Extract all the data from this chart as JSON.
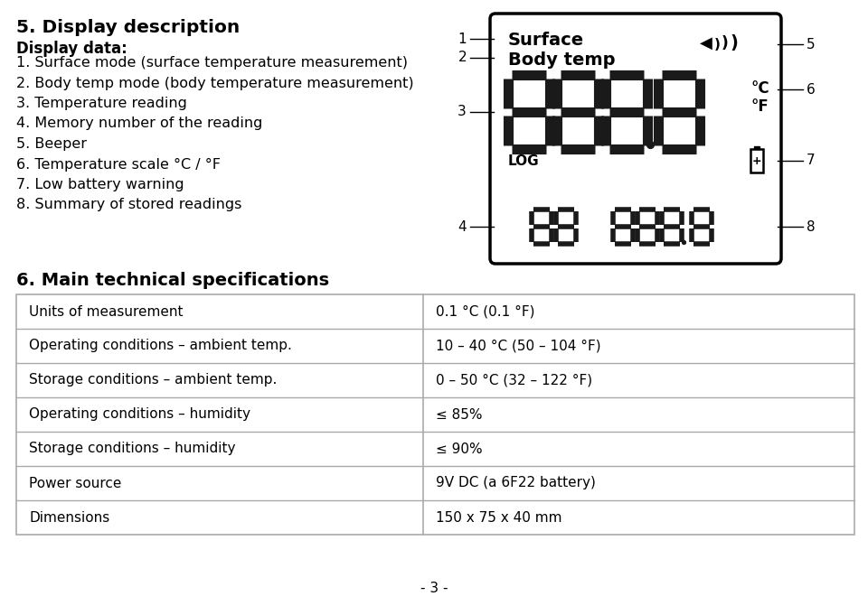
{
  "background_color": "#ffffff",
  "section5_title": "5. Display description",
  "section5_subtitle": "Display data:",
  "section5_items": [
    "1. Surface mode (surface temperature measurement)",
    "2. Body temp mode (body temperature measurement)",
    "3. Temperature reading",
    "4. Memory number of the reading",
    "5. Beeper",
    "6. Temperature scale °C / °F",
    "7. Low battery warning",
    "8. Summary of stored readings"
  ],
  "section6_title": "6. Main technical specifications",
  "table_rows": [
    [
      "Units of measurement",
      "0.1 °C (0.1 °F)"
    ],
    [
      "Operating conditions – ambient temp.",
      "10 – 40 °C (50 – 104 °F)"
    ],
    [
      "Storage conditions – ambient temp.",
      "0 – 50 °C (32 – 122 °F)"
    ],
    [
      "Operating conditions – humidity",
      "≤ 85%"
    ],
    [
      "Storage conditions – humidity",
      "≤ 90%"
    ],
    [
      "Power source",
      "9V DC (a 6F22 battery)"
    ],
    [
      "Dimensions",
      "150 x 75 x 40 mm"
    ]
  ],
  "page_number": "- 3 -",
  "digit_color": "#1a1a1a",
  "display_bg": "#ffffff",
  "display_border": "#222222",
  "annot_color": "#000000",
  "table_border_color": "#aaaaaa",
  "table_text_color": "#000000"
}
